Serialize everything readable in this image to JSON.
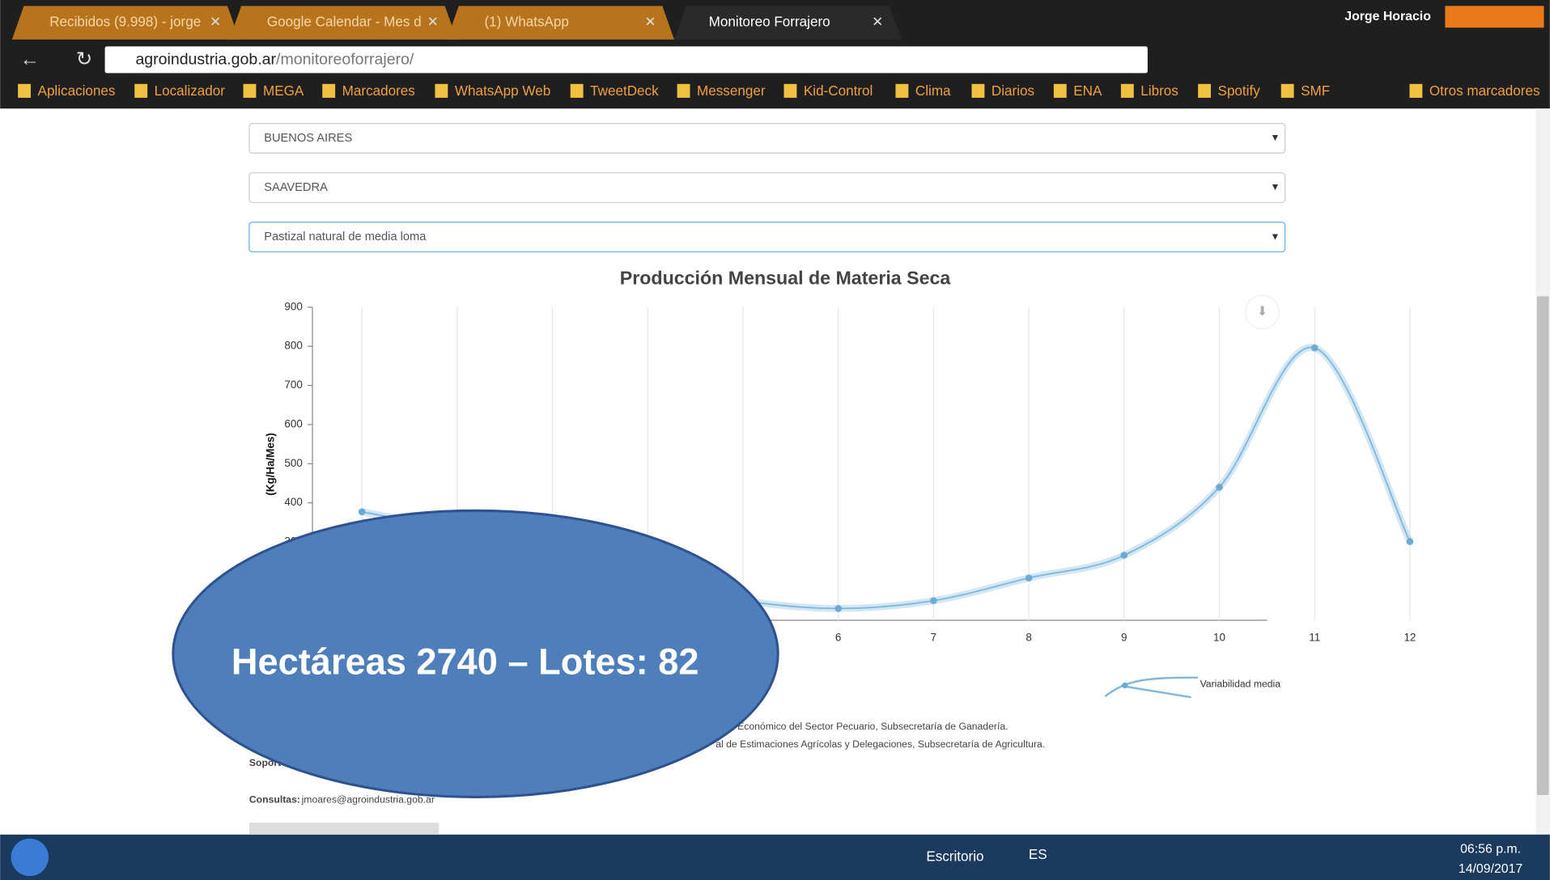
{
  "tabs": [
    "Recibidos (9.998) - jorge",
    "Google Calendar - Mes d",
    "(1) WhatsApp",
    "Monitoreo Forrajero"
  ],
  "user": "Jorge Horacio",
  "url": {
    "host": "agroindustria.gob.ar",
    "path": "/monitoreoforrajero/"
  },
  "bookmarks": [
    "Aplicaciones",
    "Localizador",
    "MEGA",
    "Marcadores",
    "WhatsApp Web",
    "TweetDeck",
    "Messenger",
    "Kid-Control",
    "Clima",
    "Diarios",
    "ENA",
    "Libros",
    "Spotify",
    "SMF",
    "Otros marcadores"
  ],
  "selects": [
    "BUENOS AIRES",
    "SAAVEDRA",
    "Pastizal natural de media loma"
  ],
  "chart_data": {
    "type": "line",
    "title": "Producción Mensual de Materia Seca",
    "y_label": "(Kg/Ha/Mes)",
    "categories": [
      "1",
      "2",
      "3",
      "4",
      "5",
      "6",
      "7",
      "8",
      "9",
      "10",
      "11",
      "12"
    ],
    "series": [
      {
        "name": "Variabilidad media",
        "color": "#7fb8dc",
        "values": [
          377,
          330,
          270,
          200,
          150,
          130,
          150,
          208,
          266,
          440,
          796,
          301
        ]
      }
    ],
    "ylim": [
      100,
      900
    ],
    "yticks": [
      100,
      200,
      300,
      400,
      500,
      600,
      700,
      800,
      900
    ],
    "grid": true,
    "legend": "bottom-right"
  },
  "footer": {
    "line1": "Económico del Sector Pecuario, Subsecretaría de Ganadería.",
    "line2": "al de Estimaciones Agrícolas y Delegaciones, Subsecretaría de Agricultura.",
    "support": "Soport",
    "contact_label": "Consultas:",
    "contact_email": "jmoares@agroindustria.gob.ar"
  },
  "overlay": "Hectáreas 2740 – Lotes: 82",
  "taskbar": {
    "desktop": "Escritorio",
    "lang": "ES",
    "time": "06:56 p.m.",
    "date": "14/09/2017"
  }
}
